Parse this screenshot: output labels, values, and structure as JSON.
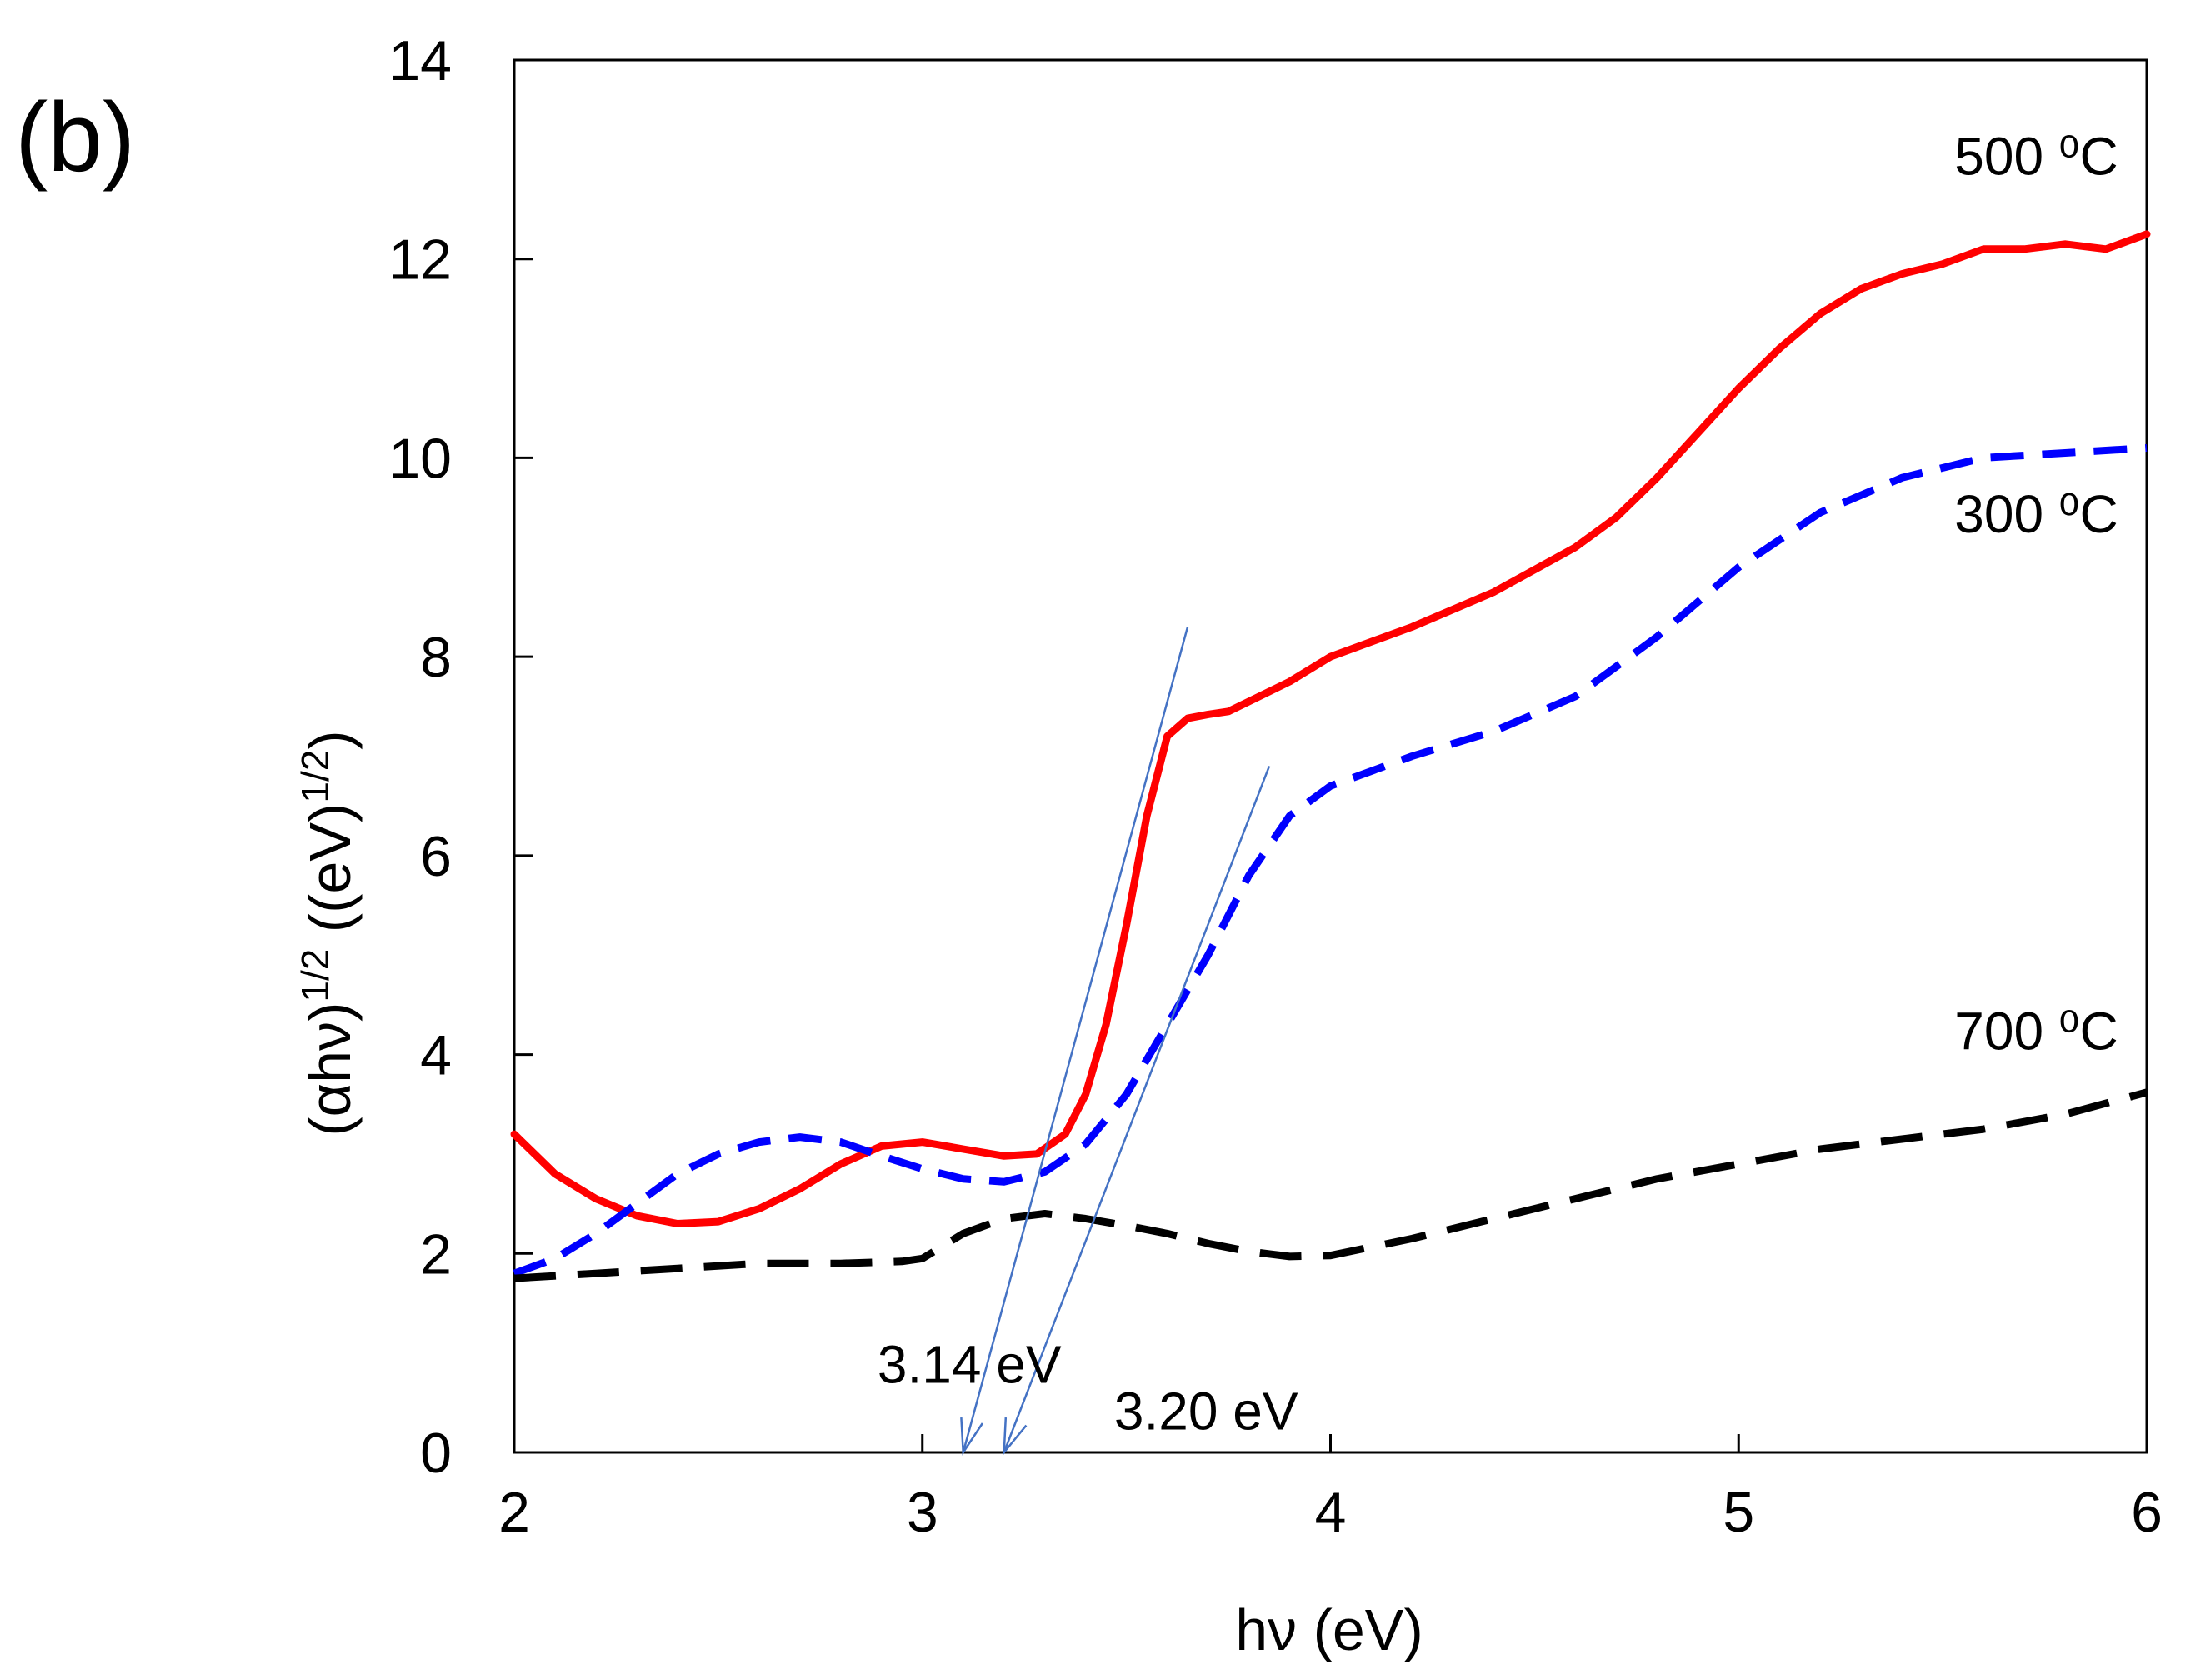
{
  "panel_label": "(b)",
  "chart_data": {
    "type": "line",
    "xlabel": "hν (eV)",
    "ylabel": {
      "base": "(αhν)",
      "exp1": "1/2",
      "mid": " ((eV)",
      "exp2": "1/2",
      "end": ")"
    },
    "xlim": [
      2,
      6
    ],
    "ylim": [
      0,
      14
    ],
    "x_ticks": [
      2,
      3,
      4,
      5,
      6
    ],
    "y_ticks": [
      0,
      2,
      4,
      6,
      8,
      10,
      12,
      14
    ],
    "grid": false,
    "series": [
      {
        "name": "500 ⁰C",
        "color": "#ff0000",
        "style": "solid",
        "points": [
          [
            2.0,
            3.2
          ],
          [
            2.1,
            2.8
          ],
          [
            2.2,
            2.55
          ],
          [
            2.3,
            2.38
          ],
          [
            2.4,
            2.3
          ],
          [
            2.5,
            2.32
          ],
          [
            2.6,
            2.45
          ],
          [
            2.7,
            2.65
          ],
          [
            2.8,
            2.9
          ],
          [
            2.9,
            3.08
          ],
          [
            3.0,
            3.12
          ],
          [
            3.1,
            3.05
          ],
          [
            3.2,
            2.98
          ],
          [
            3.28,
            3.0
          ],
          [
            3.35,
            3.2
          ],
          [
            3.4,
            3.6
          ],
          [
            3.45,
            4.3
          ],
          [
            3.5,
            5.3
          ],
          [
            3.55,
            6.4
          ],
          [
            3.6,
            7.2
          ],
          [
            3.65,
            7.38
          ],
          [
            3.7,
            7.42
          ],
          [
            3.75,
            7.45
          ],
          [
            3.8,
            7.55
          ],
          [
            3.9,
            7.75
          ],
          [
            4.0,
            8.0
          ],
          [
            4.2,
            8.3
          ],
          [
            4.4,
            8.65
          ],
          [
            4.6,
            9.1
          ],
          [
            4.7,
            9.4
          ],
          [
            4.8,
            9.8
          ],
          [
            4.9,
            10.25
          ],
          [
            5.0,
            10.7
          ],
          [
            5.1,
            11.1
          ],
          [
            5.2,
            11.45
          ],
          [
            5.3,
            11.7
          ],
          [
            5.4,
            11.85
          ],
          [
            5.5,
            11.95
          ],
          [
            5.6,
            12.1
          ],
          [
            5.7,
            12.1
          ],
          [
            5.8,
            12.15
          ],
          [
            5.9,
            12.1
          ],
          [
            6.0,
            12.25
          ]
        ]
      },
      {
        "name": "300 ⁰C",
        "color": "#0000ff",
        "style": "dashed",
        "points": [
          [
            2.0,
            1.8
          ],
          [
            2.1,
            1.95
          ],
          [
            2.2,
            2.2
          ],
          [
            2.3,
            2.5
          ],
          [
            2.4,
            2.8
          ],
          [
            2.5,
            3.0
          ],
          [
            2.6,
            3.12
          ],
          [
            2.7,
            3.17
          ],
          [
            2.8,
            3.12
          ],
          [
            2.9,
            2.98
          ],
          [
            3.0,
            2.85
          ],
          [
            3.1,
            2.75
          ],
          [
            3.2,
            2.72
          ],
          [
            3.3,
            2.82
          ],
          [
            3.4,
            3.1
          ],
          [
            3.5,
            3.6
          ],
          [
            3.6,
            4.3
          ],
          [
            3.7,
            5.0
          ],
          [
            3.8,
            5.8
          ],
          [
            3.9,
            6.4
          ],
          [
            4.0,
            6.7
          ],
          [
            4.2,
            7.0
          ],
          [
            4.4,
            7.25
          ],
          [
            4.6,
            7.6
          ],
          [
            4.8,
            8.2
          ],
          [
            5.0,
            8.9
          ],
          [
            5.2,
            9.45
          ],
          [
            5.4,
            9.8
          ],
          [
            5.6,
            10.0
          ],
          [
            5.8,
            10.05
          ],
          [
            6.0,
            10.1
          ]
        ]
      },
      {
        "name": "700 ⁰C",
        "color": "#000000",
        "style": "dashed",
        "points": [
          [
            2.0,
            1.75
          ],
          [
            2.2,
            1.8
          ],
          [
            2.4,
            1.85
          ],
          [
            2.6,
            1.9
          ],
          [
            2.8,
            1.9
          ],
          [
            2.95,
            1.92
          ],
          [
            3.0,
            1.95
          ],
          [
            3.1,
            2.2
          ],
          [
            3.2,
            2.35
          ],
          [
            3.3,
            2.4
          ],
          [
            3.4,
            2.35
          ],
          [
            3.5,
            2.28
          ],
          [
            3.6,
            2.2
          ],
          [
            3.7,
            2.1
          ],
          [
            3.8,
            2.02
          ],
          [
            3.9,
            1.97
          ],
          [
            4.0,
            1.98
          ],
          [
            4.2,
            2.15
          ],
          [
            4.4,
            2.35
          ],
          [
            4.6,
            2.55
          ],
          [
            4.8,
            2.75
          ],
          [
            5.0,
            2.9
          ],
          [
            5.2,
            3.05
          ],
          [
            5.4,
            3.15
          ],
          [
            5.6,
            3.25
          ],
          [
            5.8,
            3.4
          ],
          [
            6.0,
            3.62
          ]
        ]
      }
    ],
    "fit_lines": [
      {
        "color": "#4472c4",
        "points": [
          [
            3.1,
            0.0
          ],
          [
            3.65,
            8.3
          ]
        ]
      },
      {
        "color": "#4472c4",
        "points": [
          [
            3.2,
            0.0
          ],
          [
            3.85,
            6.9
          ]
        ]
      }
    ],
    "annotations": [
      {
        "text": "500 ⁰C",
        "at": [
          5.93,
          12.85
        ]
      },
      {
        "text": "300 ⁰C",
        "at": [
          5.93,
          9.25
        ]
      },
      {
        "text": "700 ⁰C",
        "at": [
          5.93,
          4.05
        ]
      },
      {
        "text": "3.14 eV",
        "at": [
          2.89,
          0.7
        ]
      },
      {
        "text": "3.20 eV",
        "at": [
          3.47,
          0.23
        ]
      }
    ]
  }
}
